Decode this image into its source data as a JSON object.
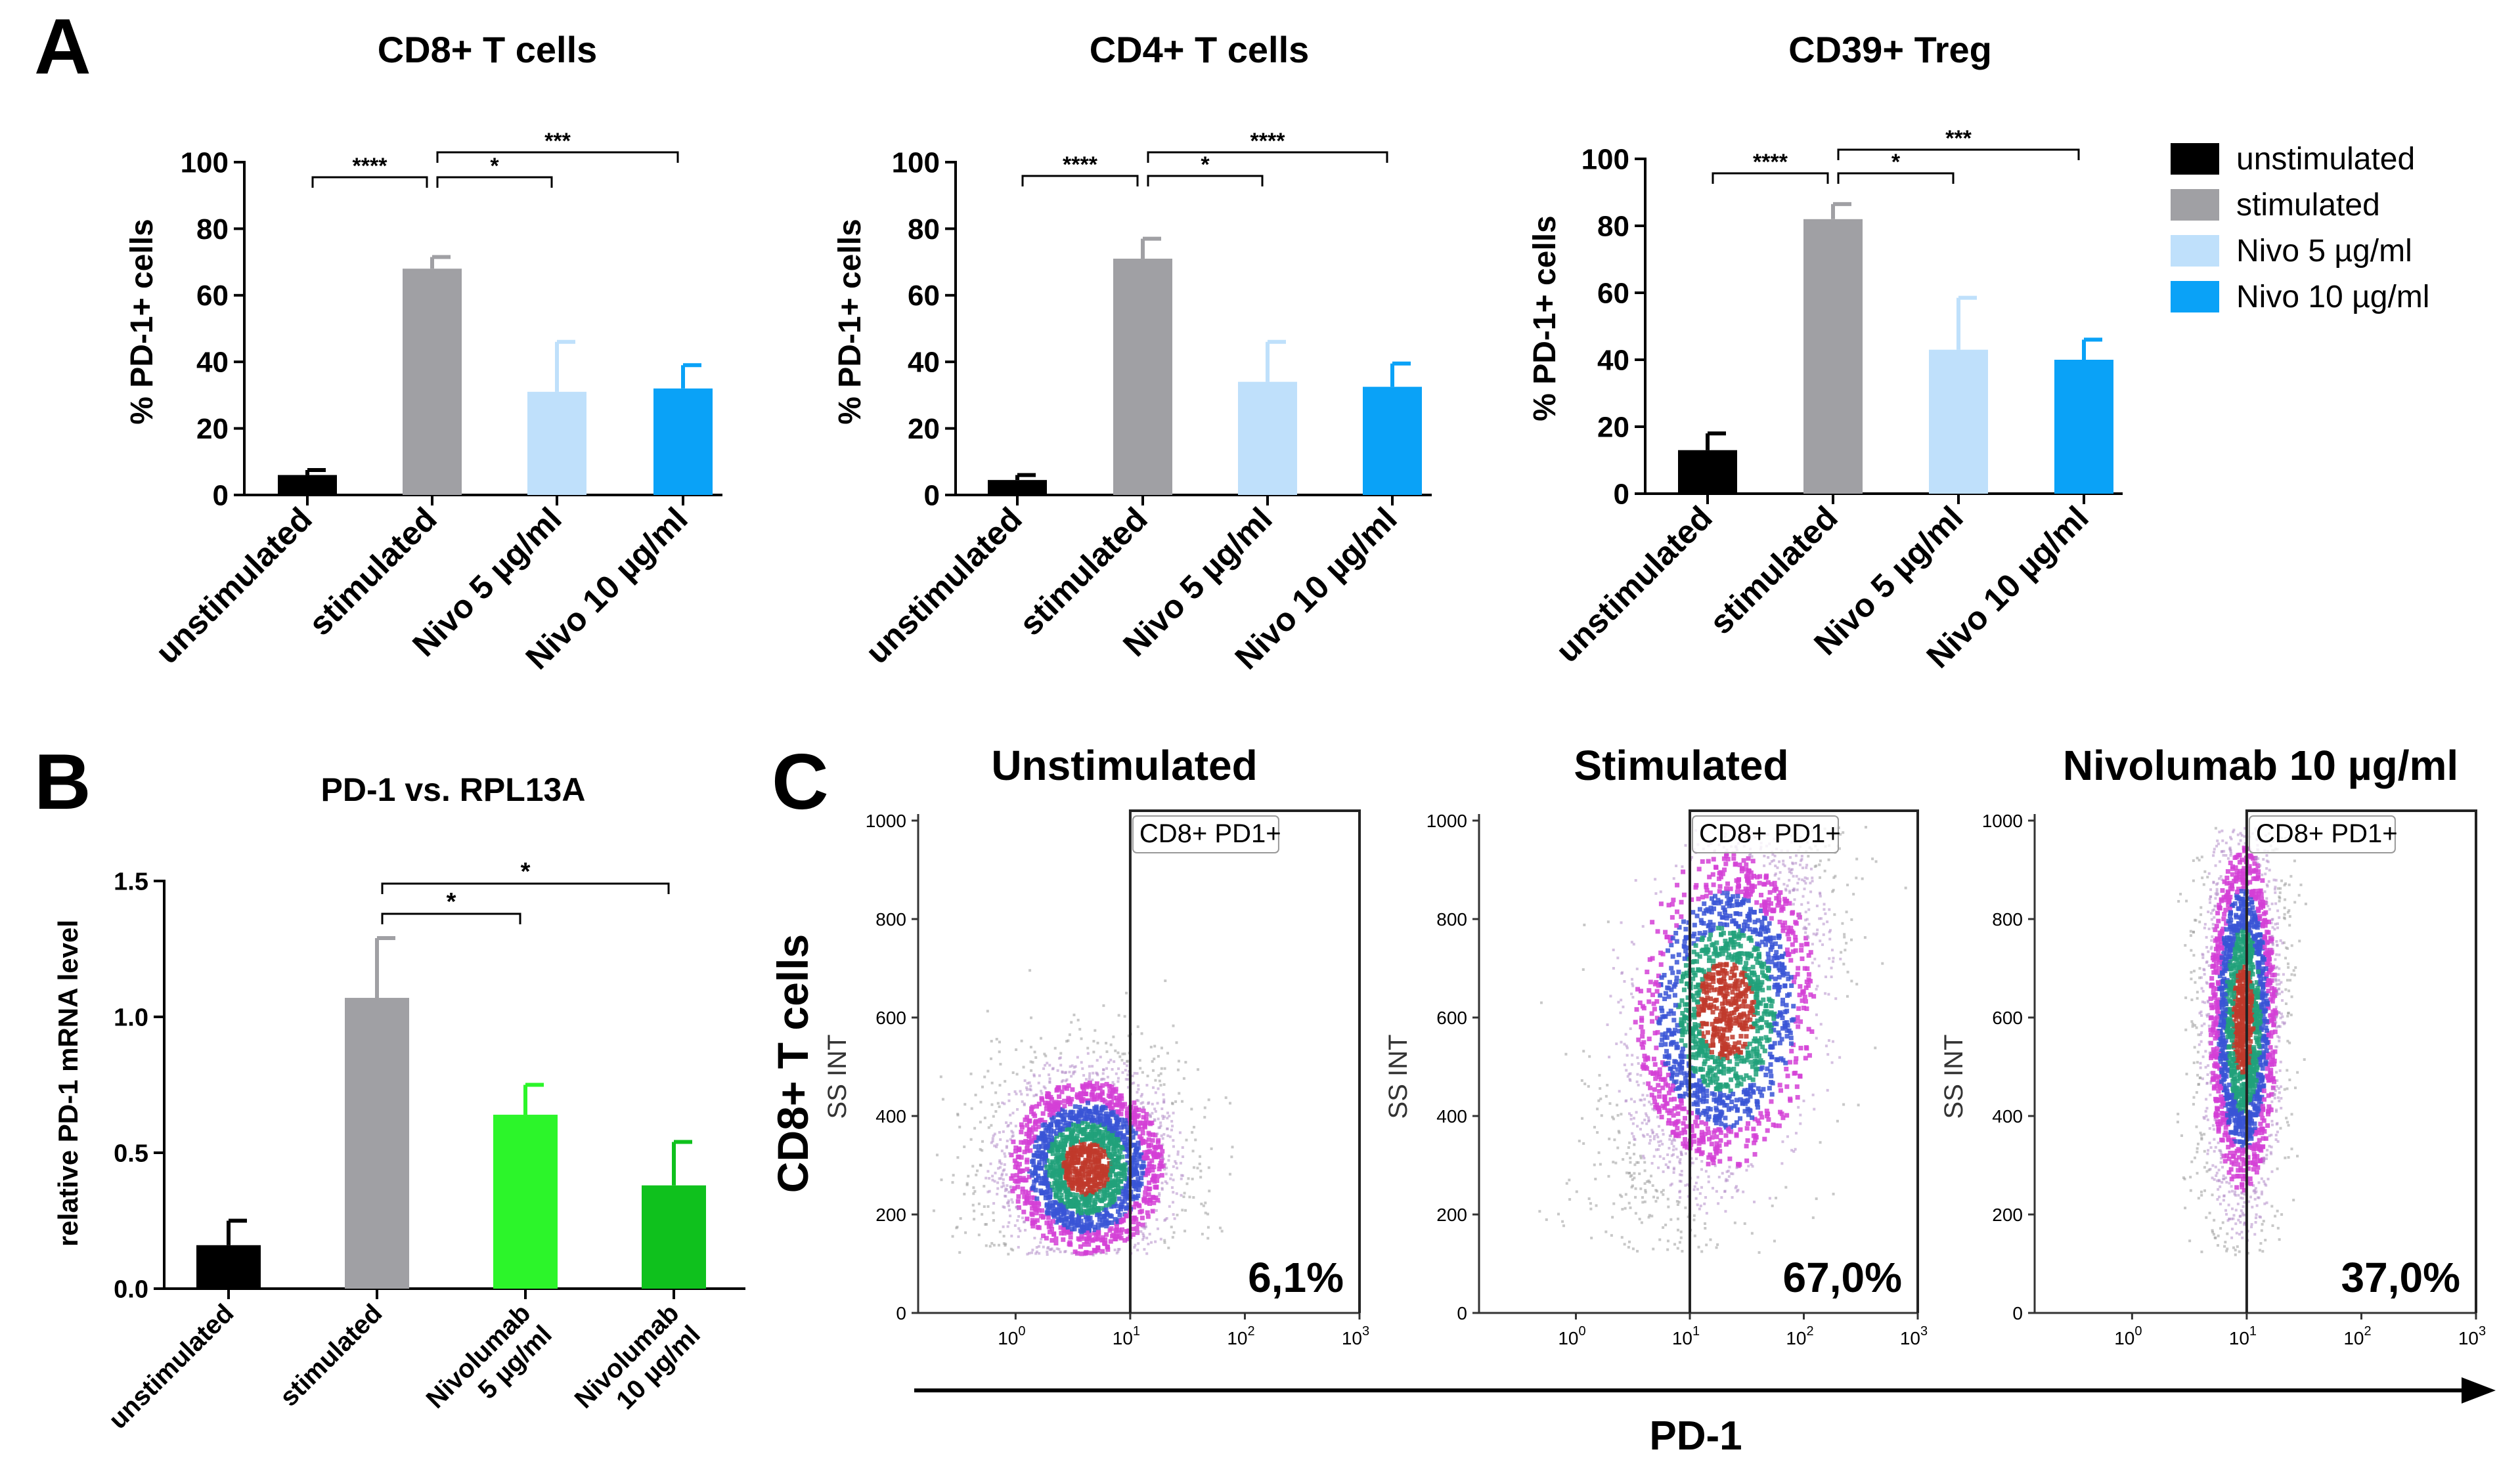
{
  "panel_labels": {
    "a": "A",
    "b": "B",
    "c": "C"
  },
  "legend": [
    {
      "label": "unstimulated",
      "color": "#000000"
    },
    {
      "label": "stimulated",
      "color": "#a0a0a4"
    },
    {
      "label": "Nivo 5 µg/ml",
      "color": "#bfe0fb"
    },
    {
      "label": "Nivo 10 µg/ml",
      "color": "#0aa2f7"
    }
  ],
  "chart_data": [
    {
      "type": "bar",
      "title": "CD8+ T cells",
      "ylabel": "% PD-1+ cells",
      "categories": [
        "unstimulated",
        "stimulated",
        "Nivo 5 µg/ml",
        "Nivo 10 µg/ml"
      ],
      "values": [
        6,
        68,
        31,
        32
      ],
      "errors": [
        1.5,
        3.5,
        15,
        7
      ],
      "colors": [
        "#000000",
        "#a0a0a4",
        "#bfe0fb",
        "#0aa2f7"
      ],
      "ylim": [
        0,
        100
      ],
      "yticks": [
        "0",
        "20",
        "40",
        "60",
        "80",
        "100"
      ],
      "significance": [
        {
          "from": 0,
          "to": 1,
          "label": "****",
          "level": 0
        },
        {
          "from": 1,
          "to": 2,
          "label": "*",
          "level": 0
        },
        {
          "from": 1,
          "to": 3,
          "label": "***",
          "level": 1
        }
      ]
    },
    {
      "type": "bar",
      "title": "CD4+ T cells",
      "ylabel": "% PD-1+ cells",
      "categories": [
        "unstimulated",
        "stimulated",
        "Nivo 5 µg/ml",
        "Nivo 10 µg/ml"
      ],
      "values": [
        4.5,
        71,
        34,
        32.5
      ],
      "errors": [
        1.5,
        6,
        12,
        7
      ],
      "colors": [
        "#000000",
        "#a0a0a4",
        "#bfe0fb",
        "#0aa2f7"
      ],
      "ylim": [
        0,
        100
      ],
      "yticks": [
        "0",
        "20",
        "40",
        "60",
        "80",
        "100"
      ],
      "significance": [
        {
          "from": 0,
          "to": 1,
          "label": "****",
          "level": 0
        },
        {
          "from": 1,
          "to": 2,
          "label": "*",
          "level": 0
        },
        {
          "from": 1,
          "to": 3,
          "label": "****",
          "level": 1
        }
      ]
    },
    {
      "type": "bar",
      "title": "CD39+ Treg",
      "ylabel": "% PD-1+ cells",
      "categories": [
        "unstimulated",
        "stimulated",
        "Nivo 5 µg/ml",
        "Nivo 10 µg/ml"
      ],
      "values": [
        13,
        82,
        43,
        40
      ],
      "errors": [
        5,
        4.5,
        15.5,
        6
      ],
      "colors": [
        "#000000",
        "#a0a0a4",
        "#bfe0fb",
        "#0aa2f7"
      ],
      "ylim": [
        0,
        100
      ],
      "yticks": [
        "0",
        "20",
        "40",
        "60",
        "80",
        "100"
      ],
      "significance": [
        {
          "from": 0,
          "to": 1,
          "label": "****",
          "level": 0
        },
        {
          "from": 1,
          "to": 2,
          "label": "*",
          "level": 0
        },
        {
          "from": 1,
          "to": 3,
          "label": "***",
          "level": 1
        }
      ]
    },
    {
      "type": "bar",
      "title": "PD-1 vs. RPL13A",
      "ylabel": "relative PD-1 mRNA level",
      "categories": [
        "unstimulated",
        "stimulated",
        "Nivolumab 5 µg/ml",
        "Nivolumab 10 µg/ml"
      ],
      "category_lines": [
        [
          "unstimulated"
        ],
        [
          "stimulated"
        ],
        [
          "Nivolumab",
          "5 µg/ml"
        ],
        [
          "Nivolumab",
          "10 µg/ml"
        ]
      ],
      "values": [
        0.16,
        1.07,
        0.64,
        0.38
      ],
      "errors": [
        0.09,
        0.22,
        0.11,
        0.16
      ],
      "colors": [
        "#000000",
        "#a0a0a4",
        "#2cf52a",
        "#0fc11d"
      ],
      "ylim": [
        0,
        1.5
      ],
      "yticks": [
        "0.0",
        "0.5",
        "1.0",
        "1.5"
      ],
      "significance": [
        {
          "from": 1,
          "to": 2,
          "label": "*",
          "level": 0
        },
        {
          "from": 1,
          "to": 3,
          "label": "*",
          "level": 1
        }
      ]
    },
    {
      "type": "scatter",
      "subtype": "flow-cytometry density plots",
      "row_label": "CD8+ T cells",
      "xlabel": "PD-1",
      "ylabel": "SS INT",
      "gate_label": "CD8+ PD1+",
      "yticks": [
        "0",
        "200",
        "400",
        "600",
        "800",
        "1000"
      ],
      "xticks_exp": [
        "0",
        "1",
        "2",
        "3"
      ],
      "gate_x": 1,
      "plots": [
        {
          "title": "Unstimulated",
          "percent": "6,1%",
          "center_log": 0.6,
          "center_ss": 300,
          "spread_log": 0.42,
          "spread_ss": 110
        },
        {
          "title": "Stimulated",
          "percent": "67,0%",
          "center_log": 1.3,
          "center_ss": 620,
          "spread_log": 0.5,
          "spread_ss": 200
        },
        {
          "title": "Nivolumab 10 µg/ml",
          "percent": "37,0%",
          "center_log": 0.95,
          "center_ss": 600,
          "spread_log": 0.18,
          "spread_ss": 220
        }
      ]
    }
  ]
}
